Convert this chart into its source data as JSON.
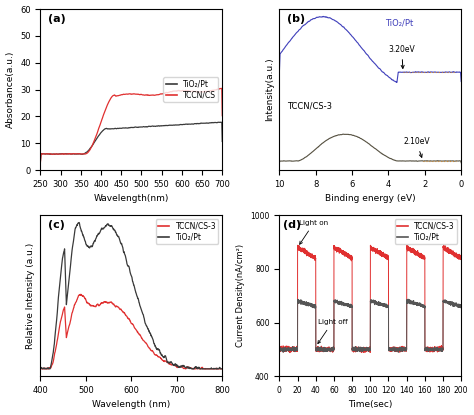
{
  "fig_width": 4.74,
  "fig_height": 4.15,
  "dpi": 100,
  "panel_a": {
    "label": "(a)",
    "xlabel": "Wavelength(nm)",
    "ylabel": "Absorbance(a.u.)",
    "xlim": [
      250,
      700
    ],
    "ylim": [
      0,
      60
    ],
    "yticks": [
      0,
      10,
      20,
      30,
      40,
      50,
      60
    ],
    "xticks": [
      250,
      300,
      350,
      400,
      450,
      500,
      550,
      600,
      650,
      700
    ],
    "legend": [
      "TiO₂/Pt",
      "TCCN/CS"
    ],
    "colors": [
      "#3a3a3a",
      "#e03030"
    ]
  },
  "panel_b": {
    "label": "(b)",
    "xlabel": "Binding energy (eV)",
    "ylabel": "Intensity(a.u.)",
    "xticks": [
      10,
      8,
      6,
      4,
      2,
      0
    ],
    "colors_line": [
      "#4040bb",
      "#555040"
    ],
    "annot1": "3.20eV",
    "annot2": "2.10eV"
  },
  "panel_c": {
    "label": "(c)",
    "xlabel": "Wavelength (nm)",
    "ylabel": "Relative Intensity (a.u.)",
    "xlim": [
      400,
      800
    ],
    "xticks": [
      400,
      500,
      600,
      700,
      800
    ],
    "legend": [
      "TCCN/CS-3",
      "TiO₂/Pt"
    ],
    "colors": [
      "#e03030",
      "#3a3a3a"
    ]
  },
  "panel_d": {
    "label": "(d)",
    "xlabel": "Time(sec)",
    "ylabel": "Current Density(nA/cm²)",
    "xlim": [
      0,
      200
    ],
    "ylim": [
      400,
      1000
    ],
    "yticks": [
      400,
      600,
      800,
      1000
    ],
    "xticks": [
      0,
      20,
      40,
      60,
      80,
      100,
      120,
      140,
      160,
      180,
      200
    ],
    "legend": [
      "TCCN/CS-3",
      "TiO₂/Pt"
    ],
    "colors": [
      "#e03030",
      "#555555"
    ]
  }
}
